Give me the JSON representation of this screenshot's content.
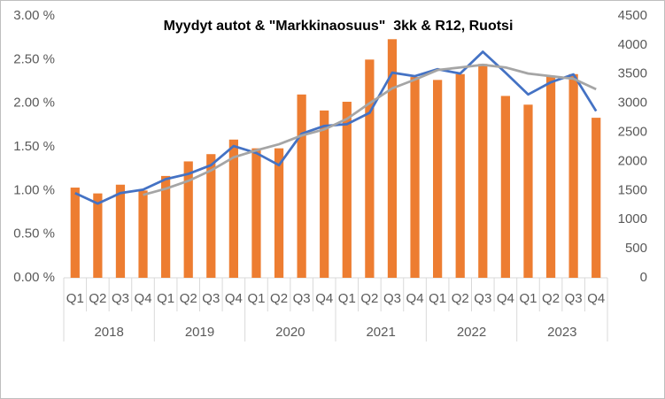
{
  "chart_data": {
    "type": "combo",
    "title": "Myydyt autot & \"Markkinaosuus\"  3kk & R12, Ruotsi",
    "categories": [
      "Q1",
      "Q2",
      "Q3",
      "Q4",
      "Q1",
      "Q2",
      "Q3",
      "Q4",
      "Q1",
      "Q2",
      "Q3",
      "Q4",
      "Q1",
      "Q2",
      "Q3",
      "Q4",
      "Q1",
      "Q2",
      "Q3",
      "Q4",
      "Q1",
      "Q2",
      "Q3",
      "Q4"
    ],
    "years": [
      "2018",
      "2019",
      "2020",
      "2021",
      "2022",
      "2023"
    ],
    "ylim": [
      0,
      3
    ],
    "yticks": [
      {
        "value": 0,
        "label": "0.00 %"
      },
      {
        "value": 0.5,
        "label": "0.50 %"
      },
      {
        "value": 1,
        "label": "1.00 %"
      },
      {
        "value": 1.5,
        "label": "1.50 %"
      },
      {
        "value": 2,
        "label": "2.00 %"
      },
      {
        "value": 2.5,
        "label": "2.50 %"
      },
      {
        "value": 3,
        "label": "3.00 %"
      }
    ],
    "y2lim": [
      0,
      4500
    ],
    "y2ticks": [
      0,
      500,
      1000,
      1500,
      2000,
      2500,
      3000,
      3500,
      4000,
      4500
    ],
    "series": [
      {
        "type": "bar",
        "axis": "y2",
        "color": "#ed7d31",
        "values": [
          1550,
          1450,
          1600,
          1500,
          1750,
          2000,
          2125,
          2375,
          2225,
          2225,
          3150,
          2875,
          3025,
          3750,
          4100,
          3450,
          3400,
          3500,
          3675,
          3125,
          2975,
          3475,
          3500,
          2750
        ]
      },
      {
        "type": "line",
        "color": "#4472c4",
        "values": [
          0.97,
          0.85,
          0.97,
          1.01,
          1.13,
          1.19,
          1.29,
          1.51,
          1.43,
          1.29,
          1.65,
          1.74,
          1.76,
          1.89,
          2.35,
          2.31,
          2.39,
          2.34,
          2.59,
          2.35,
          2.1,
          2.24,
          2.33,
          1.91
        ]
      },
      {
        "type": "line",
        "color": "#a5a5a5",
        "values": [
          null,
          null,
          null,
          0.95,
          1.02,
          1.11,
          1.23,
          1.38,
          1.46,
          1.53,
          1.63,
          1.7,
          1.82,
          2.0,
          2.17,
          2.27,
          2.38,
          2.41,
          2.44,
          2.41,
          2.34,
          2.31,
          2.28,
          2.16
        ]
      }
    ]
  }
}
